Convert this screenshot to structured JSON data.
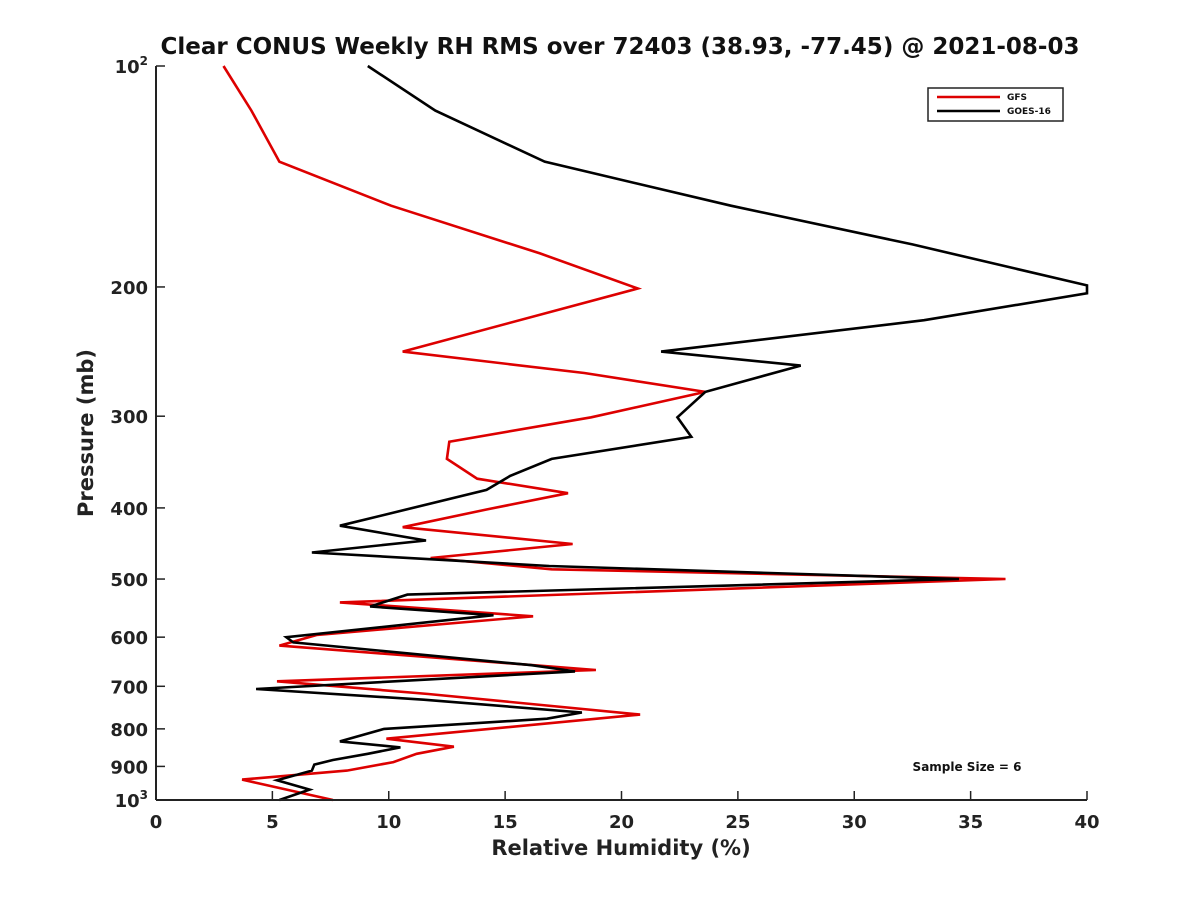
{
  "chart_data": {
    "type": "line",
    "title": "Clear CONUS Weekly RH RMS over 72403 (38.93, -77.45) @ 2021-08-03",
    "xlabel": "Relative Humidity (%)",
    "ylabel": "Pressure (mb)",
    "xlim": [
      0,
      40
    ],
    "ylim": [
      100,
      1000
    ],
    "y_scale": "log",
    "y_reversed": true,
    "x_ticks": [
      "0",
      "5",
      "10",
      "15",
      "20",
      "25",
      "30",
      "35",
      "40"
    ],
    "y_ticks": [
      {
        "value": 100,
        "base": "10",
        "exp": "2"
      },
      {
        "value": 200,
        "label": "200"
      },
      {
        "value": 300,
        "label": "300"
      },
      {
        "value": 400,
        "label": "400"
      },
      {
        "value": 500,
        "label": "500"
      },
      {
        "value": 600,
        "label": "600"
      },
      {
        "value": 700,
        "label": "700"
      },
      {
        "value": 800,
        "label": "800"
      },
      {
        "value": 900,
        "label": "900"
      },
      {
        "value": 1000,
        "base": "10",
        "exp": "3"
      }
    ],
    "legend_position": "top-right",
    "annotation": "Sample Size = 6",
    "series": [
      {
        "name": "GFS",
        "color": "#dd0000",
        "points": [
          [
            2.9,
            100
          ],
          [
            4.1,
            115
          ],
          [
            5.3,
            135
          ],
          [
            10.1,
            155
          ],
          [
            16.5,
            180
          ],
          [
            20.7,
            201
          ],
          [
            10.6,
            245
          ],
          [
            18.4,
            262
          ],
          [
            23.6,
            278
          ],
          [
            18.7,
            301
          ],
          [
            12.6,
            325
          ],
          [
            12.5,
            343
          ],
          [
            13.8,
            365
          ],
          [
            17.7,
            382
          ],
          [
            14.2,
            402
          ],
          [
            10.6,
            425
          ],
          [
            17.9,
            448
          ],
          [
            11.8,
            468
          ],
          [
            17.0,
            485
          ],
          [
            36.5,
            500
          ],
          [
            7.9,
            538
          ],
          [
            16.2,
            562
          ],
          [
            6.9,
            596
          ],
          [
            5.3,
            616
          ],
          [
            18.9,
            665
          ],
          [
            5.2,
            689
          ],
          [
            11.7,
            717
          ],
          [
            20.8,
            765
          ],
          [
            9.9,
            825
          ],
          [
            12.8,
            846
          ],
          [
            11.2,
            865
          ],
          [
            10.2,
            888
          ],
          [
            8.2,
            912
          ],
          [
            3.7,
            938
          ],
          [
            7.6,
            1000
          ]
        ]
      },
      {
        "name": "GOES-16",
        "color": "#000000",
        "points": [
          [
            9.1,
            100
          ],
          [
            12.0,
            115
          ],
          [
            16.7,
            135
          ],
          [
            24.7,
            155
          ],
          [
            32.5,
            175
          ],
          [
            40.0,
            199
          ],
          [
            40.0,
            204
          ],
          [
            33.0,
            222
          ],
          [
            21.7,
            245
          ],
          [
            27.7,
            256
          ],
          [
            23.6,
            278
          ],
          [
            22.4,
            301
          ],
          [
            23.0,
            320
          ],
          [
            17.0,
            343
          ],
          [
            15.2,
            362
          ],
          [
            14.2,
            378
          ],
          [
            7.9,
            423
          ],
          [
            11.6,
            443
          ],
          [
            6.7,
            460
          ],
          [
            16.9,
            480
          ],
          [
            34.5,
            500
          ],
          [
            10.8,
            525
          ],
          [
            9.2,
            545
          ],
          [
            14.5,
            560
          ],
          [
            5.6,
            600
          ],
          [
            5.9,
            610
          ],
          [
            16.1,
            655
          ],
          [
            18.0,
            668
          ],
          [
            4.3,
            706
          ],
          [
            11.5,
            730
          ],
          [
            18.3,
            760
          ],
          [
            16.8,
            775
          ],
          [
            9.8,
            800
          ],
          [
            7.9,
            832
          ],
          [
            10.5,
            848
          ],
          [
            9.1,
            865
          ],
          [
            7.6,
            882
          ],
          [
            6.8,
            895
          ],
          [
            6.7,
            912
          ],
          [
            5.2,
            940
          ],
          [
            6.6,
            968
          ],
          [
            5.3,
            1000
          ]
        ]
      }
    ]
  }
}
